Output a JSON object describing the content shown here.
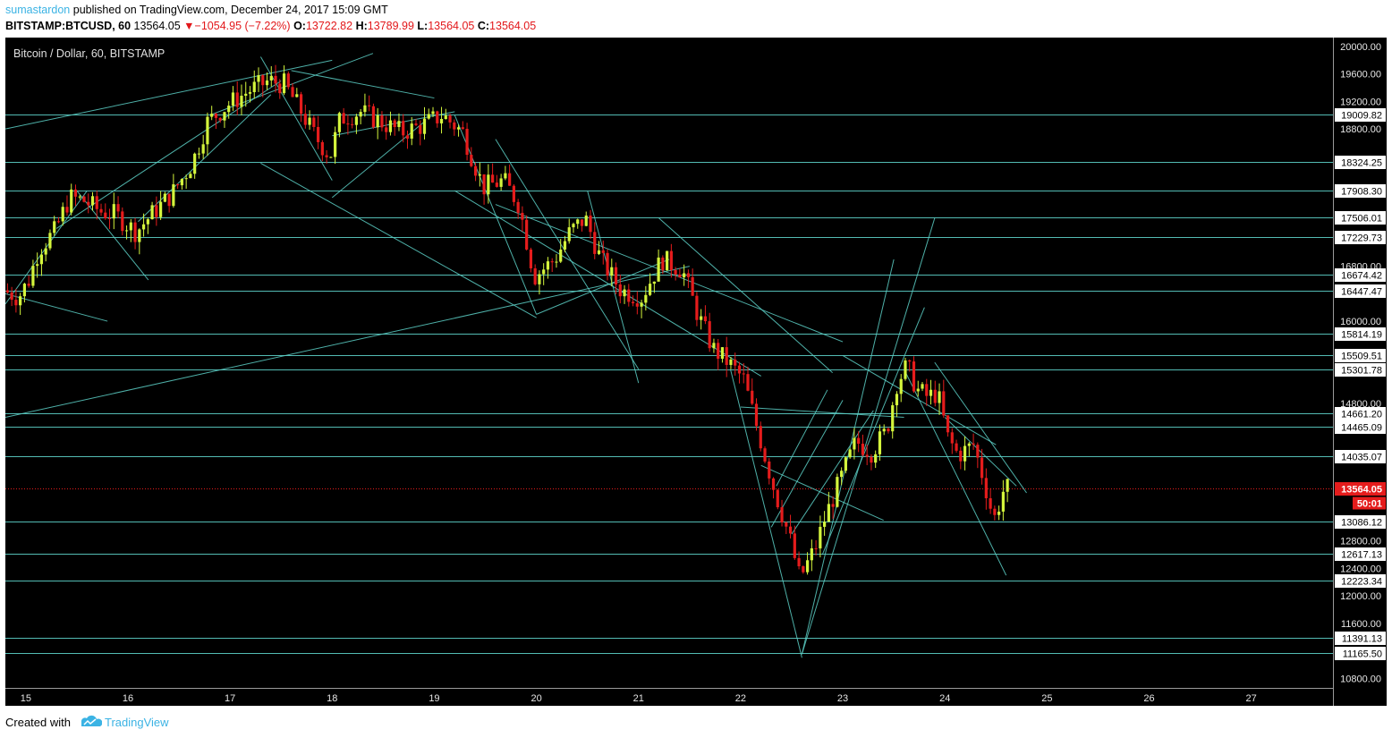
{
  "header": {
    "author": "sumastardon",
    "published": "published on TradingView.com, December 24, 2017 15:09 GMT",
    "symbol": "BITSTAMP:BTCUSD, 60",
    "last": "13564.05",
    "change": "−1054.95 (−7.22%)",
    "o_label": "O:",
    "o_value": "13722.82",
    "h_label": "H:",
    "h_value": "13789.99",
    "l_label": "L:",
    "l_value": "13564.05",
    "c_label": "C:",
    "c_value": "13564.05"
  },
  "footer": {
    "created": "Created with",
    "brand": "TradingView"
  },
  "colors": {
    "background": "#000000",
    "up": "#d4f53c",
    "down": "#e51c1c",
    "line": "#5ccfc6",
    "price_label": "#e51c1c",
    "accent": "#3bb3e4"
  },
  "chart_data": {
    "type": "candlestick",
    "title": "Bitcoin / Dollar, 60, BITSTAMP",
    "x_ticks": [
      "15",
      "16",
      "17",
      "18",
      "19",
      "20",
      "21",
      "22",
      "23",
      "24",
      "25",
      "26",
      "27"
    ],
    "x_range_days": [
      14.8,
      27.8
    ],
    "y_ticks": [
      20000,
      19600,
      19200,
      18800,
      16800,
      16000,
      14800,
      12800,
      12400,
      12000,
      11600,
      10800
    ],
    "ylim": [
      10660,
      20130
    ],
    "horizontal_levels": [
      19009.82,
      18324.25,
      17908.3,
      17506.01,
      17229.73,
      16674.42,
      16447.47,
      15814.19,
      15509.51,
      15301.78,
      14661.2,
      14465.09,
      14035.07,
      13086.12,
      12617.13,
      12223.34,
      11391.13,
      11165.5
    ],
    "current_price": 13564.05,
    "countdown": "50:01",
    "price_path": [
      [
        14.8,
        16450
      ],
      [
        14.95,
        16350
      ],
      [
        15.05,
        16600
      ],
      [
        15.15,
        17050
      ],
      [
        15.3,
        17300
      ],
      [
        15.45,
        17800
      ],
      [
        15.6,
        17750
      ],
      [
        15.75,
        17600
      ],
      [
        15.9,
        17550
      ],
      [
        16.1,
        17300
      ],
      [
        16.25,
        17550
      ],
      [
        16.45,
        17850
      ],
      [
        16.65,
        18300
      ],
      [
        16.8,
        18900
      ],
      [
        17.0,
        19150
      ],
      [
        17.2,
        19350
      ],
      [
        17.4,
        19500
      ],
      [
        17.55,
        19450
      ],
      [
        17.7,
        19100
      ],
      [
        17.85,
        18700
      ],
      [
        18.0,
        18400
      ],
      [
        18.1,
        18950
      ],
      [
        18.3,
        19050
      ],
      [
        18.5,
        18900
      ],
      [
        18.7,
        18750
      ],
      [
        18.9,
        18850
      ],
      [
        19.1,
        19000
      ],
      [
        19.3,
        18750
      ],
      [
        19.5,
        17950
      ],
      [
        19.7,
        18050
      ],
      [
        19.85,
        17700
      ],
      [
        20.0,
        16650
      ],
      [
        20.2,
        16900
      ],
      [
        20.35,
        17300
      ],
      [
        20.5,
        17500
      ],
      [
        20.65,
        16900
      ],
      [
        20.85,
        16450
      ],
      [
        21.05,
        16350
      ],
      [
        21.25,
        16900
      ],
      [
        21.45,
        16750
      ],
      [
        21.6,
        16100
      ],
      [
        21.75,
        15600
      ],
      [
        21.9,
        15400
      ],
      [
        22.05,
        15150
      ],
      [
        22.2,
        14350
      ],
      [
        22.35,
        13550
      ],
      [
        22.5,
        12850
      ],
      [
        22.6,
        12250
      ],
      [
        22.75,
        12700
      ],
      [
        22.85,
        13150
      ],
      [
        23.0,
        13700
      ],
      [
        23.15,
        14250
      ],
      [
        23.3,
        14100
      ],
      [
        23.45,
        14400
      ],
      [
        23.55,
        15100
      ],
      [
        23.65,
        15350
      ],
      [
        23.75,
        15000
      ],
      [
        23.85,
        14900
      ],
      [
        23.95,
        14950
      ],
      [
        24.05,
        14300
      ],
      [
        24.15,
        14050
      ],
      [
        24.3,
        14200
      ],
      [
        24.4,
        13700
      ],
      [
        24.5,
        13100
      ],
      [
        24.6,
        13564
      ]
    ]
  }
}
